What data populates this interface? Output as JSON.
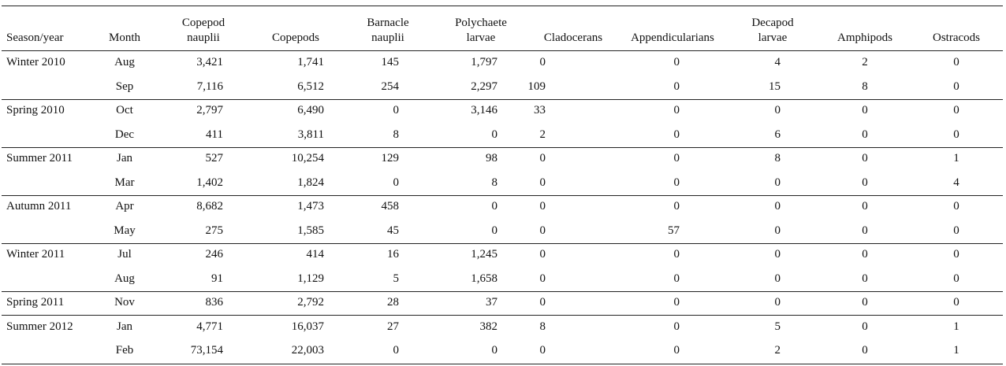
{
  "table": {
    "headers": [
      "Season/year",
      "Month",
      "Copepod\nnauplii",
      "Copepods",
      "Barnacle\nnauplii",
      "Polychaete\nlarvae",
      "Cladocerans",
      "Appendicularians",
      "Decapod\nlarvae",
      "Amphipods",
      "Ostracods"
    ],
    "groups": [
      {
        "season": "Winter 2010",
        "rows": [
          {
            "month": "Aug",
            "values": [
              "3,421",
              "1,741",
              "145",
              "1,797",
              "0",
              "0",
              "4",
              "2",
              "0"
            ]
          },
          {
            "month": "Sep",
            "values": [
              "7,116",
              "6,512",
              "254",
              "2,297",
              "109",
              "0",
              "15",
              "8",
              "0"
            ]
          }
        ]
      },
      {
        "season": "Spring 2010",
        "rows": [
          {
            "month": "Oct",
            "values": [
              "2,797",
              "6,490",
              "0",
              "3,146",
              "33",
              "0",
              "0",
              "0",
              "0"
            ]
          },
          {
            "month": "Dec",
            "values": [
              "411",
              "3,811",
              "8",
              "0",
              "2",
              "0",
              "6",
              "0",
              "0"
            ]
          }
        ]
      },
      {
        "season": "Summer 2011",
        "rows": [
          {
            "month": "Jan",
            "values": [
              "527",
              "10,254",
              "129",
              "98",
              "0",
              "0",
              "8",
              "0",
              "1"
            ]
          },
          {
            "month": "Mar",
            "values": [
              "1,402",
              "1,824",
              "0",
              "8",
              "0",
              "0",
              "0",
              "0",
              "4"
            ]
          }
        ]
      },
      {
        "season": "Autumn 2011",
        "rows": [
          {
            "month": "Apr",
            "values": [
              "8,682",
              "1,473",
              "458",
              "0",
              "0",
              "0",
              "0",
              "0",
              "0"
            ]
          },
          {
            "month": "May",
            "values": [
              "275",
              "1,585",
              "45",
              "0",
              "0",
              "57",
              "0",
              "0",
              "0"
            ]
          }
        ]
      },
      {
        "season": "Winter 2011",
        "rows": [
          {
            "month": "Jul",
            "values": [
              "246",
              "414",
              "16",
              "1,245",
              "0",
              "0",
              "0",
              "0",
              "0"
            ]
          },
          {
            "month": "Aug",
            "values": [
              "91",
              "1,129",
              "5",
              "1,658",
              "0",
              "0",
              "0",
              "0",
              "0"
            ]
          }
        ]
      },
      {
        "season": "Spring 2011",
        "rows": [
          {
            "month": "Nov",
            "values": [
              "836",
              "2,792",
              "28",
              "37",
              "0",
              "0",
              "0",
              "0",
              "0"
            ]
          }
        ]
      },
      {
        "season": "Summer 2012",
        "rows": [
          {
            "month": "Jan",
            "values": [
              "4,771",
              "16,037",
              "27",
              "382",
              "8",
              "0",
              "5",
              "0",
              "1"
            ]
          },
          {
            "month": "Feb",
            "values": [
              "73,154",
              "22,003",
              "0",
              "0",
              "0",
              "0",
              "2",
              "0",
              "1"
            ]
          }
        ]
      }
    ]
  }
}
